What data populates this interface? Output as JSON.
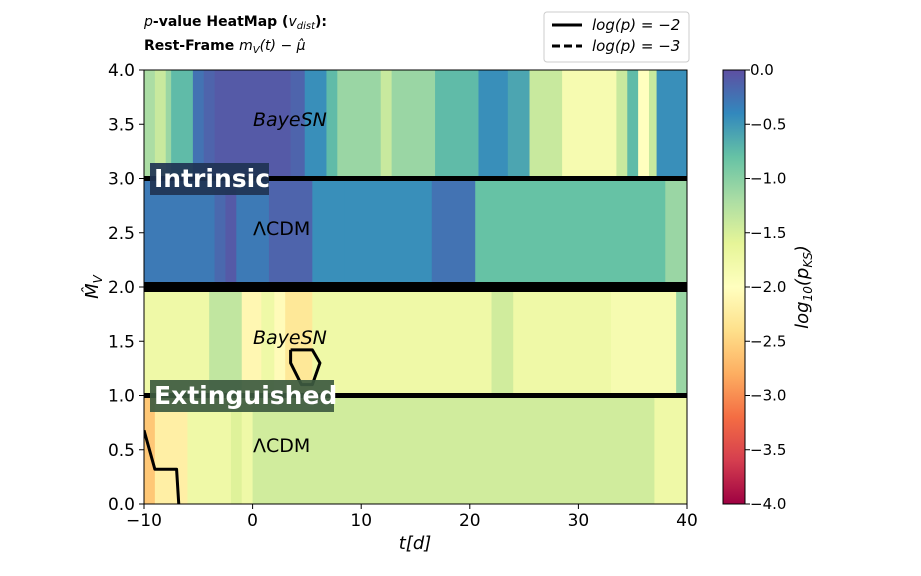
{
  "title_line1_prefix": "p",
  "title_line1_rest": "-value HeatMap (",
  "title_line1_var": "v",
  "title_line1_sub": "dist",
  "title_line1_end": "):",
  "title_line2_bold": "Rest-Frame ",
  "title_line2_math": "m",
  "title_line2_sub": "V",
  "title_line2_tail": "(t) − μ̂",
  "legend": [
    {
      "label": "log(p) = −2",
      "style": "solid"
    },
    {
      "label": "log(p) = −3",
      "style": "dashed"
    }
  ],
  "annotations": {
    "bayesn_top": "BayeSN",
    "lcdm_top": "ΛCDM",
    "bayesn_bottom": "BayeSN",
    "lcdm_bottom": "ΛCDM",
    "intrinsic": "Intrinsic",
    "extinguished": "Extinguished"
  },
  "colors": {
    "colormap": "Spectral",
    "panel_label_bg_top": "#1f3354",
    "panel_label_bg_bottom": "#3d5a40",
    "separator": "#000000"
  },
  "chart_data": {
    "type": "heatmap",
    "xlabel": "t[d]",
    "ylabel": "M̂_V",
    "colorbar_label": "log10(p_KS)",
    "xlim": [
      -10,
      40
    ],
    "ylim": [
      0,
      4
    ],
    "x_ticks": [
      "−10",
      "0",
      "10",
      "20",
      "30",
      "40"
    ],
    "x_tick_values": [
      -10,
      0,
      10,
      20,
      30,
      40
    ],
    "y_ticks": [
      "0.0",
      "0.5",
      "1.0",
      "1.5",
      "2.0",
      "2.5",
      "3.0",
      "3.5",
      "4.0"
    ],
    "y_tick_values": [
      0,
      0.5,
      1,
      1.5,
      2,
      2.5,
      3,
      3.5,
      4
    ],
    "colorbar_range": [
      -4,
      0
    ],
    "colorbar_ticks": [
      "0.0",
      "−0.5",
      "−1.0",
      "−1.5",
      "−2.0",
      "−2.5",
      "−3.0",
      "−3.5",
      "−4.0"
    ],
    "colorbar_tick_values": [
      0,
      -0.5,
      -1,
      -1.5,
      -2,
      -2.5,
      -3,
      -3.5,
      -4
    ],
    "bands": [
      {
        "y": [
          3,
          4
        ],
        "cells": [
          {
            "x": [
              -10,
              -9
            ],
            "v": -1.2
          },
          {
            "x": [
              -9,
              -8
            ],
            "v": -1.4
          },
          {
            "x": [
              -8,
              -7.5
            ],
            "v": -1.1
          },
          {
            "x": [
              -7.5,
              -5.5
            ],
            "v": -0.75
          },
          {
            "x": [
              -5.5,
              -4.5
            ],
            "v": -0.25
          },
          {
            "x": [
              -4.5,
              -3.5
            ],
            "v": -0.15
          },
          {
            "x": [
              -3.5,
              3.5
            ],
            "v": -0.08
          },
          {
            "x": [
              3.5,
              4.8
            ],
            "v": -0.15
          },
          {
            "x": [
              4.8,
              6.8
            ],
            "v": -0.45
          },
          {
            "x": [
              6.8,
              7.8
            ],
            "v": -0.75
          },
          {
            "x": [
              7.8,
              11.8
            ],
            "v": -1.1
          },
          {
            "x": [
              11.8,
              12.8
            ],
            "v": -1.4
          },
          {
            "x": [
              12.8,
              16.8
            ],
            "v": -1.1
          },
          {
            "x": [
              16.8,
              20.8
            ],
            "v": -0.75
          },
          {
            "x": [
              20.8,
              23.5
            ],
            "v": -0.45
          },
          {
            "x": [
              23.5,
              25.5
            ],
            "v": -0.6
          },
          {
            "x": [
              25.5,
              28.5
            ],
            "v": -1.4
          },
          {
            "x": [
              28.5,
              33.5
            ],
            "v": -1.85
          },
          {
            "x": [
              33.5,
              34.5
            ],
            "v": -1.4
          },
          {
            "x": [
              34.5,
              35.5
            ],
            "v": -0.75
          },
          {
            "x": [
              35.5,
              36.5
            ],
            "v": -2.0
          },
          {
            "x": [
              36.5,
              37.2
            ],
            "v": -1.4
          },
          {
            "x": [
              37.2,
              40
            ],
            "v": -0.45
          }
        ]
      },
      {
        "y": [
          2,
          3
        ],
        "cells": [
          {
            "x": [
              -10,
              -3.5
            ],
            "v": -0.3
          },
          {
            "x": [
              -3.5,
              -2.5
            ],
            "v": -0.18
          },
          {
            "x": [
              -2.5,
              -1.5
            ],
            "v": -0.08
          },
          {
            "x": [
              -1.5,
              1.5
            ],
            "v": -0.3
          },
          {
            "x": [
              1.5,
              5.5
            ],
            "v": -0.15
          },
          {
            "x": [
              5.5,
              8.5
            ],
            "v": -0.45
          },
          {
            "x": [
              8.5,
              16.5
            ],
            "v": -0.45
          },
          {
            "x": [
              16.5,
              20.5
            ],
            "v": -0.25
          },
          {
            "x": [
              20.5,
              38
            ],
            "v": -0.8
          },
          {
            "x": [
              38,
              40
            ],
            "v": -1.1
          }
        ]
      },
      {
        "y": [
          1,
          2
        ],
        "cells": [
          {
            "x": [
              -10,
              -4
            ],
            "v": -1.75
          },
          {
            "x": [
              -4,
              -1
            ],
            "v": -1.35
          },
          {
            "x": [
              -1,
              0.8
            ],
            "v": -2.1
          },
          {
            "x": [
              0.8,
              2
            ],
            "v": -1.75
          },
          {
            "x": [
              2,
              3
            ],
            "v": -2.05
          },
          {
            "x": [
              3,
              5.5
            ],
            "v": -2.3
          },
          {
            "x": [
              5.5,
              22
            ],
            "v": -1.75
          },
          {
            "x": [
              22,
              24
            ],
            "v": -1.45
          },
          {
            "x": [
              24,
              33
            ],
            "v": -1.75
          },
          {
            "x": [
              33,
              39
            ],
            "v": -1.85
          },
          {
            "x": [
              39,
              40
            ],
            "v": -1.1
          }
        ]
      },
      {
        "y": [
          0,
          1
        ],
        "cells": [
          {
            "x": [
              -10,
              -9
            ],
            "v": -2.6
          },
          {
            "x": [
              -9,
              -6
            ],
            "v": -2.2
          },
          {
            "x": [
              -6,
              -2
            ],
            "v": -1.75
          },
          {
            "x": [
              -2,
              -1
            ],
            "v": -1.55
          },
          {
            "x": [
              -1,
              0
            ],
            "v": -1.75
          },
          {
            "x": [
              0,
              37
            ],
            "v": -1.45
          },
          {
            "x": [
              37,
              40
            ],
            "v": -1.75
          }
        ]
      }
    ],
    "separators_y": [
      1,
      2,
      3
    ],
    "contours": [
      {
        "level": -2,
        "style": "solid",
        "points": [
          [
            3.5,
            1.42
          ],
          [
            5.5,
            1.42
          ],
          [
            6.2,
            1.3
          ],
          [
            5.5,
            1.1
          ],
          [
            4.5,
            1.1
          ],
          [
            3.5,
            1.3
          ],
          [
            3.5,
            1.42
          ]
        ]
      },
      {
        "level": -2,
        "style": "solid",
        "points": [
          [
            -10,
            0.68
          ],
          [
            -9,
            0.32
          ],
          [
            -7,
            0.32
          ],
          [
            -6.8,
            0.0
          ]
        ]
      }
    ]
  }
}
